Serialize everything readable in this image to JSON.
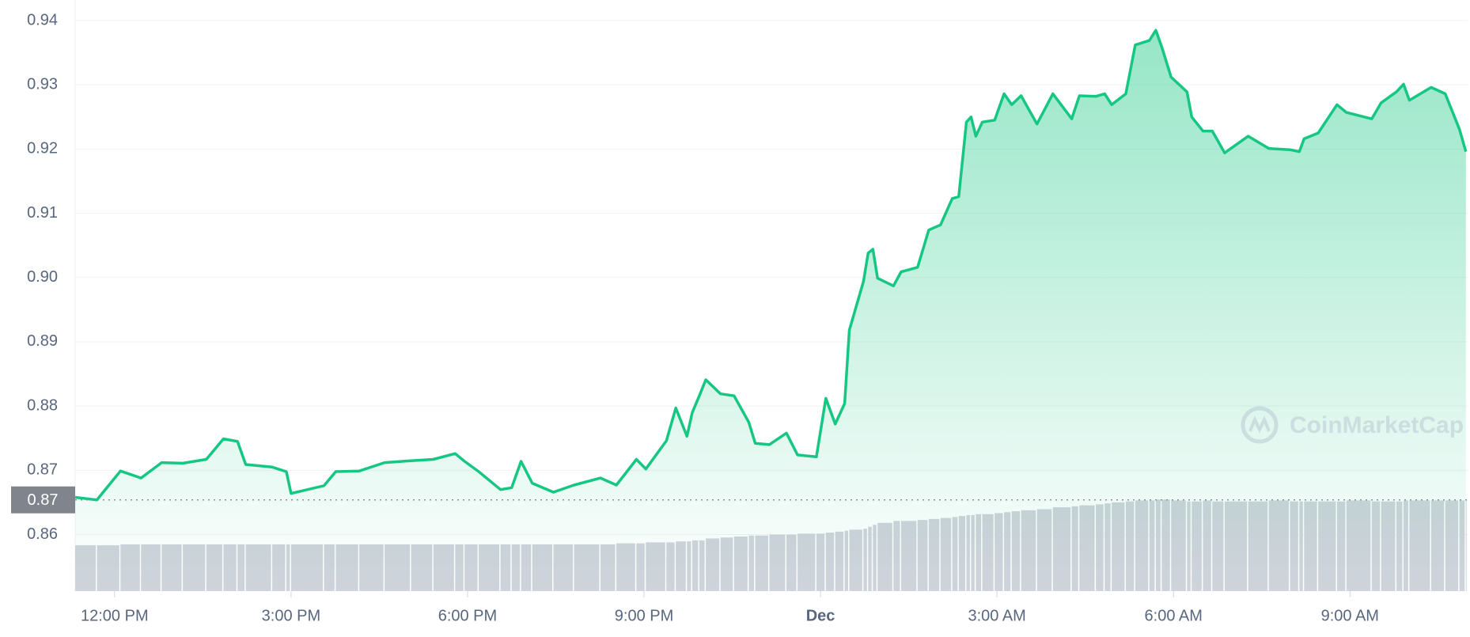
{
  "chart_data": {
    "type": "line",
    "x": [
      11.33,
      11.7,
      12.1,
      12.45,
      12.8,
      13.16,
      13.56,
      13.85,
      14.09,
      14.23,
      14.68,
      14.92,
      15.0,
      15.56,
      15.76,
      16.16,
      16.59,
      17.04,
      17.42,
      17.79,
      17.95,
      18.19,
      18.56,
      18.75,
      18.91,
      19.1,
      19.46,
      19.81,
      20.26,
      20.53,
      20.87,
      21.03,
      21.38,
      21.54,
      21.73,
      21.82,
      21.94,
      22.05,
      22.3,
      22.53,
      22.78,
      22.89,
      23.13,
      23.42,
      23.61,
      23.93,
      24.09,
      24.25,
      24.41,
      24.49,
      24.73,
      24.81,
      24.89,
      24.97,
      25.24,
      25.37,
      25.65,
      25.84,
      26.04,
      26.24,
      26.35,
      26.48,
      26.56,
      26.64,
      26.75,
      26.96,
      27.12,
      27.25,
      27.41,
      27.68,
      27.95,
      28.27,
      28.4,
      28.68,
      28.83,
      28.95,
      29.19,
      29.35,
      29.59,
      29.7,
      29.8,
      29.96,
      30.23,
      30.31,
      30.5,
      30.66,
      30.87,
      31.27,
      31.62,
      31.98,
      32.14,
      32.22,
      32.46,
      32.78,
      32.94,
      33.37,
      33.53,
      33.79,
      33.91,
      34.01,
      34.38,
      34.62,
      34.86,
      34.97
    ],
    "values": [
      0.8658,
      0.8654,
      0.8699,
      0.8688,
      0.8712,
      0.8711,
      0.8717,
      0.8749,
      0.8745,
      0.8709,
      0.8705,
      0.8698,
      0.8664,
      0.8676,
      0.8698,
      0.8699,
      0.8712,
      0.8715,
      0.8717,
      0.8726,
      0.8714,
      0.8698,
      0.867,
      0.8673,
      0.8714,
      0.868,
      0.8666,
      0.8677,
      0.8688,
      0.8677,
      0.8717,
      0.8702,
      0.8746,
      0.8797,
      0.8753,
      0.879,
      0.8816,
      0.8841,
      0.8819,
      0.8816,
      0.8775,
      0.8742,
      0.874,
      0.8758,
      0.8724,
      0.8721,
      0.8812,
      0.8772,
      0.8804,
      0.8918,
      0.8994,
      0.9038,
      0.9044,
      0.8999,
      0.8987,
      0.9009,
      0.9016,
      0.9074,
      0.9082,
      0.9123,
      0.9126,
      0.9242,
      0.925,
      0.922,
      0.9242,
      0.9245,
      0.9286,
      0.9269,
      0.9283,
      0.9239,
      0.9286,
      0.9247,
      0.9283,
      0.9282,
      0.9286,
      0.9269,
      0.9286,
      0.9362,
      0.9369,
      0.9385,
      0.9359,
      0.9312,
      0.9289,
      0.925,
      0.9228,
      0.9228,
      0.9194,
      0.922,
      0.9201,
      0.9199,
      0.9196,
      0.9216,
      0.9225,
      0.9269,
      0.9257,
      0.9247,
      0.9272,
      0.9289,
      0.9301,
      0.9276,
      0.9296,
      0.9286,
      0.9231,
      0.9196
    ],
    "color": "#16c784",
    "area": true,
    "volume": [
      47,
      47,
      48,
      48,
      48,
      48,
      48,
      48,
      48,
      48,
      48,
      48,
      48,
      48,
      48,
      48,
      48,
      48,
      48,
      48,
      48,
      48,
      48,
      48,
      48,
      48,
      48,
      48,
      48,
      49,
      49,
      50,
      50,
      51,
      51,
      52,
      52,
      54,
      55,
      56,
      57,
      57,
      58,
      58,
      59,
      59,
      60,
      61,
      62,
      63,
      64,
      66,
      68,
      70,
      72,
      72,
      73,
      74,
      75,
      76,
      77,
      78,
      78,
      79,
      79,
      80,
      81,
      82,
      83,
      84,
      86,
      87,
      88,
      89,
      90,
      91,
      92,
      93,
      93,
      94,
      94,
      93,
      92,
      92,
      93,
      92,
      92,
      92,
      93,
      92,
      92,
      92,
      92,
      92,
      93,
      92,
      92,
      92,
      93,
      93,
      93,
      93,
      93,
      93
    ],
    "volume_color": "#cfd3db",
    "current_price": {
      "value": 0.8654,
      "label": "0.87"
    },
    "watermark": "CoinMarketCap",
    "xlim": [
      11.33,
      35.0
    ],
    "xticks": [
      {
        "value": 12,
        "label": "12:00 PM"
      },
      {
        "value": 15,
        "label": "3:00 PM"
      },
      {
        "value": 18,
        "label": "6:00 PM"
      },
      {
        "value": 21,
        "label": "9:00 PM"
      },
      {
        "value": 24,
        "label": "Dec",
        "bold": true
      },
      {
        "value": 27,
        "label": "3:00 AM"
      },
      {
        "value": 30,
        "label": "6:00 AM"
      },
      {
        "value": 33,
        "label": "9:00 AM"
      }
    ],
    "ylim": [
      0.8512,
      0.9432
    ],
    "yticks": [
      0.86,
      0.87,
      0.88,
      0.89,
      {
        "value": 0.9,
        "label": "0.90"
      },
      0.91,
      0.92,
      0.93,
      0.94
    ],
    "grid": true
  }
}
